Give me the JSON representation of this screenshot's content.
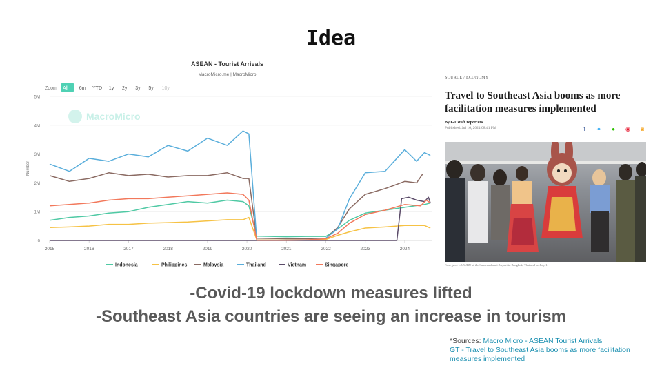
{
  "slide": {
    "title": "Idea",
    "bullets": [
      "-Covid-19 lockdown measures lifted",
      "-Southeast Asia countries are seeing an increase in tourism"
    ],
    "sources_prefix": "*Sources: ",
    "source_links": [
      "Macro Micro - ASEAN Tourist Arrivals",
      "GT - Travel to Southeast Asia booms as more facilitation measures implemented"
    ]
  },
  "article": {
    "kicker": "SOURCE / ECONOMY",
    "title": "Travel to Southeast Asia booms as more facilitation measures implemented",
    "byline": "By GT staff reporters",
    "published": "Published: Jul 16, 2024 08:41 PM",
    "caption": "Fans greet LABUBU at the Suvarnabhumi Airport in Bangkok, Thailand on July 1.",
    "share_icons": [
      "facebook-icon",
      "twitter-icon",
      "wechat-icon",
      "weibo-icon",
      "rss-icon"
    ],
    "share_colors": [
      "#3b5998",
      "#1da1f2",
      "#2dc100",
      "#e6162d",
      "#f5a623"
    ]
  },
  "chart_data": {
    "type": "line",
    "title": "ASEAN - Tourist Arrivals",
    "subtitle": "MacroMicro.me | MacroMicro",
    "watermark": "MacroMicro",
    "ylabel": "Number",
    "ylim": [
      0,
      5000000
    ],
    "yticks": [
      0,
      1000000,
      2000000,
      3000000,
      4000000,
      5000000
    ],
    "ytick_labels": [
      "0",
      "1M",
      "2M",
      "3M",
      "4M",
      "5M"
    ],
    "xlim": [
      2015.0,
      2024.7
    ],
    "xticks": [
      "2015",
      "2016",
      "2017",
      "2018",
      "2019",
      "2020",
      "2021",
      "2022",
      "2023",
      "2024"
    ],
    "zoom_label": "Zoom",
    "zoom_options": [
      "All",
      "6m",
      "YTD",
      "1y",
      "2y",
      "3y",
      "5y",
      "10y"
    ],
    "zoom_selected": "All",
    "legend_position": "bottom",
    "grid": true,
    "series": [
      {
        "name": "Indonesia",
        "color": "#4fc9a4",
        "points": [
          [
            2015.0,
            700000
          ],
          [
            2015.5,
            800000
          ],
          [
            2016.0,
            850000
          ],
          [
            2016.5,
            950000
          ],
          [
            2017.0,
            1000000
          ],
          [
            2017.5,
            1150000
          ],
          [
            2018.0,
            1250000
          ],
          [
            2018.5,
            1350000
          ],
          [
            2019.0,
            1300000
          ],
          [
            2019.5,
            1400000
          ],
          [
            2019.9,
            1350000
          ],
          [
            2020.05,
            1200000
          ],
          [
            2020.25,
            150000
          ],
          [
            2021.0,
            130000
          ],
          [
            2021.5,
            140000
          ],
          [
            2022.0,
            140000
          ],
          [
            2022.3,
            400000
          ],
          [
            2022.6,
            700000
          ],
          [
            2023.0,
            950000
          ],
          [
            2023.5,
            1050000
          ],
          [
            2024.0,
            1150000
          ],
          [
            2024.5,
            1250000
          ],
          [
            2024.65,
            1300000
          ]
        ]
      },
      {
        "name": "Philippines",
        "color": "#f6c244",
        "points": [
          [
            2015.0,
            450000
          ],
          [
            2015.5,
            470000
          ],
          [
            2016.0,
            500000
          ],
          [
            2016.5,
            560000
          ],
          [
            2017.0,
            560000
          ],
          [
            2017.5,
            600000
          ],
          [
            2018.0,
            620000
          ],
          [
            2018.5,
            640000
          ],
          [
            2019.0,
            680000
          ],
          [
            2019.5,
            720000
          ],
          [
            2019.9,
            720000
          ],
          [
            2020.05,
            800000
          ],
          [
            2020.25,
            20000
          ],
          [
            2021.0,
            15000
          ],
          [
            2021.5,
            15000
          ],
          [
            2022.0,
            30000
          ],
          [
            2022.3,
            180000
          ],
          [
            2022.6,
            300000
          ],
          [
            2023.0,
            430000
          ],
          [
            2023.5,
            470000
          ],
          [
            2024.0,
            520000
          ],
          [
            2024.5,
            520000
          ],
          [
            2024.65,
            430000
          ]
        ]
      },
      {
        "name": "Malaysia",
        "color": "#8a6a62",
        "points": [
          [
            2015.0,
            2250000
          ],
          [
            2015.5,
            2050000
          ],
          [
            2016.0,
            2150000
          ],
          [
            2016.5,
            2350000
          ],
          [
            2017.0,
            2250000
          ],
          [
            2017.5,
            2300000
          ],
          [
            2018.0,
            2200000
          ],
          [
            2018.5,
            2250000
          ],
          [
            2019.0,
            2250000
          ],
          [
            2019.5,
            2350000
          ],
          [
            2019.9,
            2150000
          ],
          [
            2020.05,
            2150000
          ],
          [
            2020.25,
            80000
          ],
          [
            2021.0,
            60000
          ],
          [
            2021.5,
            60000
          ],
          [
            2022.0,
            70000
          ],
          [
            2022.3,
            450000
          ],
          [
            2022.6,
            1100000
          ],
          [
            2023.0,
            1600000
          ],
          [
            2023.5,
            1800000
          ],
          [
            2024.0,
            2050000
          ],
          [
            2024.3,
            2000000
          ],
          [
            2024.45,
            2300000
          ]
        ]
      },
      {
        "name": "Thailand",
        "color": "#5aaedb",
        "points": [
          [
            2015.0,
            2650000
          ],
          [
            2015.5,
            2400000
          ],
          [
            2016.0,
            2850000
          ],
          [
            2016.5,
            2750000
          ],
          [
            2017.0,
            3000000
          ],
          [
            2017.5,
            2900000
          ],
          [
            2018.0,
            3300000
          ],
          [
            2018.5,
            3100000
          ],
          [
            2019.0,
            3550000
          ],
          [
            2019.5,
            3300000
          ],
          [
            2019.9,
            3800000
          ],
          [
            2020.05,
            3700000
          ],
          [
            2020.25,
            10000
          ],
          [
            2021.0,
            10000
          ],
          [
            2021.5,
            10000
          ],
          [
            2022.0,
            80000
          ],
          [
            2022.3,
            400000
          ],
          [
            2022.6,
            1450000
          ],
          [
            2023.0,
            2350000
          ],
          [
            2023.5,
            2400000
          ],
          [
            2024.0,
            3150000
          ],
          [
            2024.3,
            2750000
          ],
          [
            2024.5,
            3050000
          ],
          [
            2024.65,
            2950000
          ]
        ]
      },
      {
        "name": "Vietnam",
        "color": "#5b4b69",
        "points": [
          [
            2015.0,
            0
          ],
          [
            2016.0,
            0
          ],
          [
            2017.0,
            0
          ],
          [
            2018.0,
            0
          ],
          [
            2019.0,
            0
          ],
          [
            2020.0,
            0
          ],
          [
            2021.0,
            0
          ],
          [
            2022.0,
            0
          ],
          [
            2023.0,
            0
          ],
          [
            2023.8,
            0
          ],
          [
            2023.92,
            1450000
          ],
          [
            2024.1,
            1500000
          ],
          [
            2024.3,
            1400000
          ],
          [
            2024.5,
            1350000
          ],
          [
            2024.6,
            1500000
          ],
          [
            2024.65,
            1300000
          ]
        ]
      },
      {
        "name": "Singapore",
        "color": "#f2785b",
        "points": [
          [
            2015.0,
            1200000
          ],
          [
            2015.5,
            1250000
          ],
          [
            2016.0,
            1300000
          ],
          [
            2016.5,
            1400000
          ],
          [
            2017.0,
            1450000
          ],
          [
            2017.5,
            1450000
          ],
          [
            2018.0,
            1500000
          ],
          [
            2018.5,
            1550000
          ],
          [
            2019.0,
            1600000
          ],
          [
            2019.5,
            1650000
          ],
          [
            2019.9,
            1600000
          ],
          [
            2020.05,
            1400000
          ],
          [
            2020.25,
            10000
          ],
          [
            2021.0,
            10000
          ],
          [
            2021.5,
            20000
          ],
          [
            2022.0,
            60000
          ],
          [
            2022.3,
            250000
          ],
          [
            2022.6,
            600000
          ],
          [
            2023.0,
            900000
          ],
          [
            2023.5,
            1050000
          ],
          [
            2024.0,
            1250000
          ],
          [
            2024.4,
            1200000
          ],
          [
            2024.55,
            1400000
          ],
          [
            2024.65,
            1300000
          ]
        ]
      }
    ]
  }
}
